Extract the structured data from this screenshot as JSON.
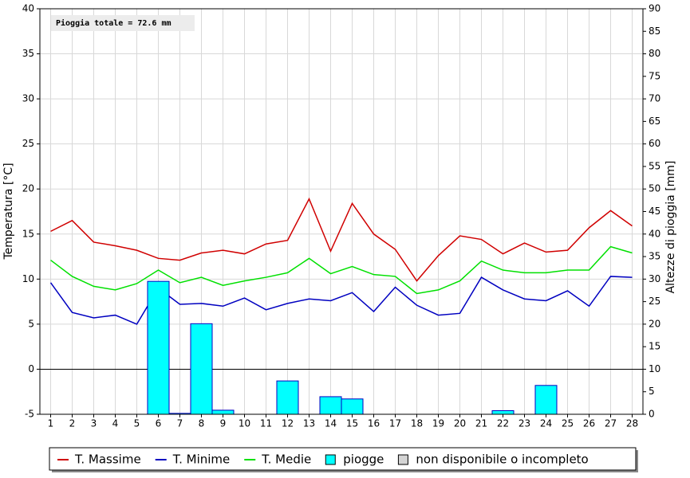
{
  "chart_data": {
    "type": "line",
    "annotation": "Pioggia totale = 72.6 mm",
    "ylabel": "Temperatura [°C]",
    "y2label": "Altezze di pioggia [mm]",
    "categories": [
      "1",
      "2",
      "3",
      "4",
      "5",
      "6",
      "7",
      "8",
      "9",
      "10",
      "11",
      "12",
      "13",
      "14",
      "15",
      "16",
      "17",
      "18",
      "19",
      "20",
      "21",
      "22",
      "23",
      "24",
      "25",
      "26",
      "27",
      "28"
    ],
    "ylim": [
      -5,
      40
    ],
    "yticks": [
      -5,
      0,
      5,
      10,
      15,
      20,
      25,
      30,
      35,
      40
    ],
    "y2lim": [
      0,
      90
    ],
    "y2ticks": [
      0,
      5,
      10,
      15,
      20,
      25,
      30,
      35,
      40,
      45,
      50,
      55,
      60,
      65,
      70,
      75,
      80,
      85,
      90
    ],
    "grid": true,
    "series": [
      {
        "name": "T. Massime",
        "color": "#d00000",
        "values": [
          15.3,
          16.5,
          14.1,
          13.7,
          13.2,
          12.3,
          12.1,
          12.9,
          13.2,
          12.8,
          13.9,
          14.3,
          18.9,
          13.1,
          18.4,
          15.0,
          13.3,
          9.8,
          12.6,
          14.8,
          14.4,
          12.8,
          14.0,
          13.0,
          13.2,
          15.7,
          17.6,
          15.9
        ]
      },
      {
        "name": "T. Minime",
        "color": "#0000c0",
        "values": [
          9.6,
          6.3,
          5.7,
          6.0,
          5.0,
          9.0,
          7.2,
          7.3,
          7.0,
          7.9,
          6.6,
          7.3,
          7.8,
          7.6,
          8.5,
          6.4,
          9.1,
          7.1,
          6.0,
          6.2,
          10.2,
          8.8,
          7.8,
          7.6,
          8.7,
          7.0,
          10.3,
          10.2
        ]
      },
      {
        "name": "T. Medie",
        "color": "#00e000",
        "values": [
          12.1,
          10.3,
          9.2,
          8.8,
          9.5,
          11.0,
          9.6,
          10.2,
          9.3,
          9.8,
          10.2,
          10.7,
          12.3,
          10.6,
          11.4,
          10.5,
          10.3,
          8.4,
          8.8,
          9.8,
          12.0,
          11.0,
          10.7,
          10.7,
          11.0,
          11.0,
          13.6,
          12.9
        ]
      },
      {
        "name": "piogge",
        "type": "bar",
        "axis": "y2",
        "color": "#00ffff",
        "values": [
          null,
          null,
          null,
          null,
          null,
          29.5,
          0.2,
          20.1,
          0.9,
          null,
          null,
          7.4,
          null,
          3.9,
          3.4,
          null,
          null,
          null,
          null,
          null,
          null,
          0.8,
          null,
          6.4,
          null,
          null,
          null,
          null
        ]
      }
    ],
    "legend_extra": [
      {
        "name": "non disponibile o incompleto",
        "color": "#d4d4d4"
      }
    ]
  }
}
